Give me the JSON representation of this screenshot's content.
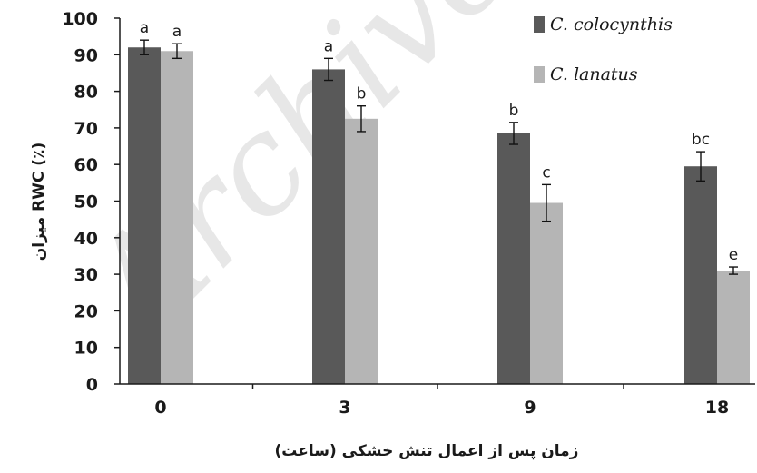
{
  "chart_data": {
    "type": "bar",
    "categories": [
      "0",
      "3",
      "9",
      "18"
    ],
    "category_labels": [
      "0",
      "3",
      "9",
      "18"
    ],
    "series": [
      {
        "name": "C. colocynthis",
        "color": "#595959",
        "values": [
          92,
          86,
          68.5,
          59.5
        ],
        "errors": [
          2,
          3,
          3,
          4
        ],
        "letters": [
          "a",
          "a",
          "b",
          "bc"
        ]
      },
      {
        "name": "C. lanatus",
        "color": "#b5b5b5",
        "values": [
          91,
          72.5,
          49.5,
          31
        ],
        "errors": [
          2,
          3.5,
          5,
          1
        ],
        "letters": [
          "a",
          "b",
          "c",
          "e"
        ]
      }
    ],
    "xlabel": "زمان پس از اعمال تنش خشکی (ساعت)",
    "ylabel": "میزان RWC (٪)",
    "ylim": [
      0,
      100
    ],
    "yticks": [
      0,
      10,
      20,
      30,
      40,
      50,
      60,
      70,
      80,
      90,
      100
    ],
    "grid": false,
    "legend": "top-right"
  },
  "watermark": "Archive"
}
